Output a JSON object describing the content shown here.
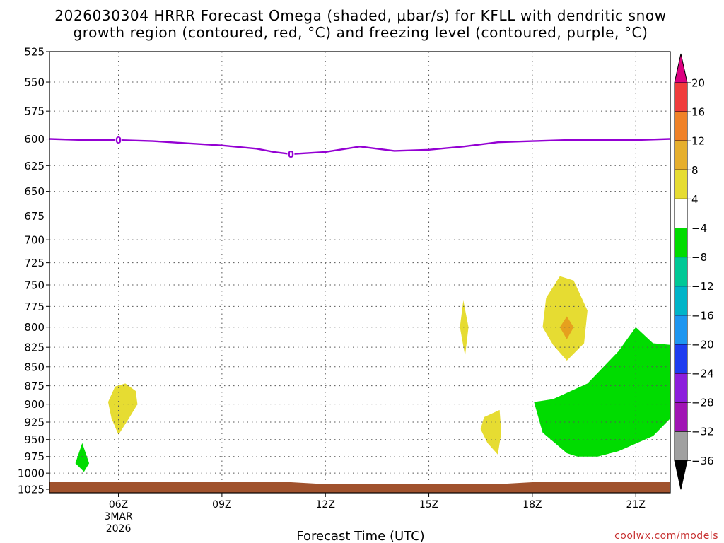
{
  "chart_data": {
    "type": "time-height",
    "title_line1": "2026030304 HRRR Forecast Omega (shaded, μbar/s) for KFLL with dendritic snow",
    "title_line2": "growth region (contoured, red, °C) and freezing level (contoured, purple, °C)",
    "xlabel": "Forecast Time (UTC)",
    "credit": "coolwx.com/models",
    "time_range_hours": [
      4,
      22
    ],
    "pressure_range_hpa": [
      525,
      1025
    ],
    "y_ticks": [
      525,
      550,
      575,
      600,
      625,
      650,
      675,
      700,
      725,
      750,
      775,
      800,
      825,
      850,
      875,
      900,
      925,
      950,
      975,
      1000,
      1025
    ],
    "x_ticks": [
      {
        "hour": 6,
        "label": "06Z",
        "sub1": "3MAR",
        "sub2": "2026"
      },
      {
        "hour": 9,
        "label": "09Z"
      },
      {
        "hour": 12,
        "label": "12Z"
      },
      {
        "hour": 15,
        "label": "15Z"
      },
      {
        "hour": 18,
        "label": "18Z"
      },
      {
        "hour": 21,
        "label": "21Z"
      }
    ],
    "freezing_level": {
      "label": "0",
      "label_points": [
        {
          "t": 6.0,
          "p": 601
        },
        {
          "t": 11.0,
          "p": 614
        }
      ],
      "points": [
        [
          4.0,
          600
        ],
        [
          5.0,
          601
        ],
        [
          6.0,
          601
        ],
        [
          7.0,
          602
        ],
        [
          8.0,
          604
        ],
        [
          9.0,
          606
        ],
        [
          10.0,
          609
        ],
        [
          10.5,
          612
        ],
        [
          11.0,
          614
        ],
        [
          12.0,
          612
        ],
        [
          13.0,
          607
        ],
        [
          14.0,
          611
        ],
        [
          15.0,
          610
        ],
        [
          16.0,
          607
        ],
        [
          17.0,
          603
        ],
        [
          18.0,
          602
        ],
        [
          19.0,
          601
        ],
        [
          20.0,
          601
        ],
        [
          21.0,
          601
        ],
        [
          22.0,
          600
        ]
      ]
    },
    "shaded_regions": [
      {
        "level": "4 to 8",
        "color": "#e6dc32",
        "points": [
          [
            5.7,
            897
          ],
          [
            5.9,
            876
          ],
          [
            6.2,
            872
          ],
          [
            6.5,
            882
          ],
          [
            6.55,
            900
          ],
          [
            6.3,
            920
          ],
          [
            6.0,
            943
          ],
          [
            5.8,
            920
          ]
        ]
      },
      {
        "level": "-8 to -4",
        "color": "#00dc00",
        "points": [
          [
            4.75,
            985
          ],
          [
            4.95,
            955
          ],
          [
            5.15,
            985
          ],
          [
            5.0,
            998
          ]
        ]
      },
      {
        "level": "4 to 8",
        "color": "#e6dc32",
        "points": [
          [
            15.9,
            800
          ],
          [
            16.0,
            768
          ],
          [
            16.15,
            800
          ],
          [
            16.05,
            836
          ]
        ]
      },
      {
        "level": "4 to 8",
        "color": "#e6dc32",
        "points": [
          [
            16.5,
            935
          ],
          [
            16.6,
            918
          ],
          [
            17.05,
            908
          ],
          [
            17.1,
            940
          ],
          [
            17.0,
            972
          ],
          [
            16.7,
            955
          ]
        ]
      },
      {
        "level": "4 to 8",
        "color": "#e6dc32",
        "points": [
          [
            18.3,
            800
          ],
          [
            18.4,
            765
          ],
          [
            18.8,
            740
          ],
          [
            19.2,
            745
          ],
          [
            19.6,
            780
          ],
          [
            19.5,
            820
          ],
          [
            19.0,
            842
          ],
          [
            18.6,
            822
          ]
        ]
      },
      {
        "level": "8 to 12",
        "color": "#e6a01e",
        "points": [
          [
            18.8,
            800
          ],
          [
            19.0,
            787
          ],
          [
            19.2,
            800
          ],
          [
            19.0,
            815
          ]
        ]
      },
      {
        "level": "-8 to -4",
        "color": "#00dc00",
        "points": [
          [
            18.05,
            897
          ],
          [
            18.6,
            893
          ],
          [
            19.6,
            872
          ],
          [
            20.5,
            830
          ],
          [
            21.0,
            800
          ],
          [
            21.5,
            820
          ],
          [
            22.0,
            822
          ],
          [
            22.0,
            920
          ],
          [
            21.5,
            945
          ],
          [
            20.5,
            967
          ],
          [
            19.9,
            975
          ],
          [
            19.3,
            975
          ],
          [
            19.0,
            970
          ],
          [
            18.3,
            940
          ]
        ]
      }
    ],
    "ground": {
      "color": "#a0522d",
      "points": [
        [
          4.0,
          1014
        ],
        [
          11.0,
          1014
        ],
        [
          12.0,
          1017
        ],
        [
          17.0,
          1017
        ],
        [
          18.0,
          1014
        ],
        [
          22.0,
          1014
        ]
      ]
    },
    "colorbar": {
      "levels": [
        "20",
        "16",
        "12",
        "8",
        "4",
        "−4",
        "−8",
        "−12",
        "−16",
        "−20",
        "−24",
        "−28",
        "−32",
        "−36"
      ],
      "colors": [
        "#dc0080",
        "#f03c3c",
        "#f08228",
        "#e6af2d",
        "#e6dc32",
        "#ffffff",
        "#00dc00",
        "#00c896",
        "#00b4c8",
        "#1e96f0",
        "#1e3cf0",
        "#8c1edc",
        "#a014b4",
        "#a0a0a0",
        "#000000"
      ]
    }
  }
}
